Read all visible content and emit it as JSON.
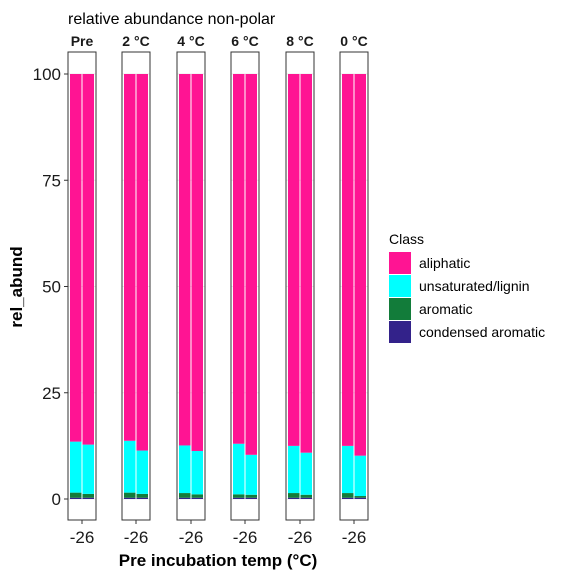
{
  "chart_data": {
    "type": "bar",
    "stacked": true,
    "faceted": true,
    "title": "relative abundance non-polar",
    "xlabel": "Pre incubation temp (°C)",
    "ylabel": "rel_abund",
    "ylim": [
      0,
      100
    ],
    "yticks": [
      0,
      25,
      50,
      75,
      100
    ],
    "grid": true,
    "legend": {
      "title": "Class",
      "position": "right",
      "items": [
        {
          "name": "aliphatic",
          "color": "#FF1493"
        },
        {
          "name": "unsaturated/lignin",
          "color": "#00FFFF"
        },
        {
          "name": "aromatic",
          "color": "#127C3A"
        },
        {
          "name": "condensed aromatic",
          "color": "#33228A"
        }
      ]
    },
    "panels": [
      {
        "strip": "Pre",
        "x_tick": "-26",
        "bars": [
          {
            "condensed aromatic": 0.3,
            "aromatic": 1.2,
            "unsaturated/lignin": 12.0,
            "aliphatic": 86.5
          },
          {
            "condensed aromatic": 0.3,
            "aromatic": 0.9,
            "unsaturated/lignin": 11.6,
            "aliphatic": 87.2
          }
        ]
      },
      {
        "strip": "2 °C",
        "x_tick": "-26",
        "bars": [
          {
            "condensed aromatic": 0.3,
            "aromatic": 1.2,
            "unsaturated/lignin": 12.2,
            "aliphatic": 86.3
          },
          {
            "condensed aromatic": 0.3,
            "aromatic": 0.9,
            "unsaturated/lignin": 10.2,
            "aliphatic": 88.6
          }
        ]
      },
      {
        "strip": "4 °C",
        "x_tick": "-26",
        "bars": [
          {
            "condensed aromatic": 0.3,
            "aromatic": 1.1,
            "unsaturated/lignin": 11.2,
            "aliphatic": 87.4
          },
          {
            "condensed aromatic": 0.3,
            "aromatic": 0.8,
            "unsaturated/lignin": 10.2,
            "aliphatic": 88.7
          }
        ]
      },
      {
        "strip": "6 °C",
        "x_tick": "-26",
        "bars": [
          {
            "condensed aromatic": 0.3,
            "aromatic": 0.8,
            "unsaturated/lignin": 11.9,
            "aliphatic": 87.0
          },
          {
            "condensed aromatic": 0.3,
            "aromatic": 0.7,
            "unsaturated/lignin": 9.4,
            "aliphatic": 89.6
          }
        ]
      },
      {
        "strip": "8 °C",
        "x_tick": "-26",
        "bars": [
          {
            "condensed aromatic": 0.3,
            "aromatic": 1.1,
            "unsaturated/lignin": 11.1,
            "aliphatic": 87.5
          },
          {
            "condensed aromatic": 0.3,
            "aromatic": 0.7,
            "unsaturated/lignin": 9.9,
            "aliphatic": 89.1
          }
        ]
      },
      {
        "strip": "0 °C",
        "x_tick": "-26",
        "bars": [
          {
            "condensed aromatic": 0.3,
            "aromatic": 1.1,
            "unsaturated/lignin": 11.1,
            "aliphatic": 87.5
          },
          {
            "condensed aromatic": 0.3,
            "aromatic": 0.4,
            "unsaturated/lignin": 9.5,
            "aliphatic": 89.8
          }
        ]
      }
    ]
  }
}
